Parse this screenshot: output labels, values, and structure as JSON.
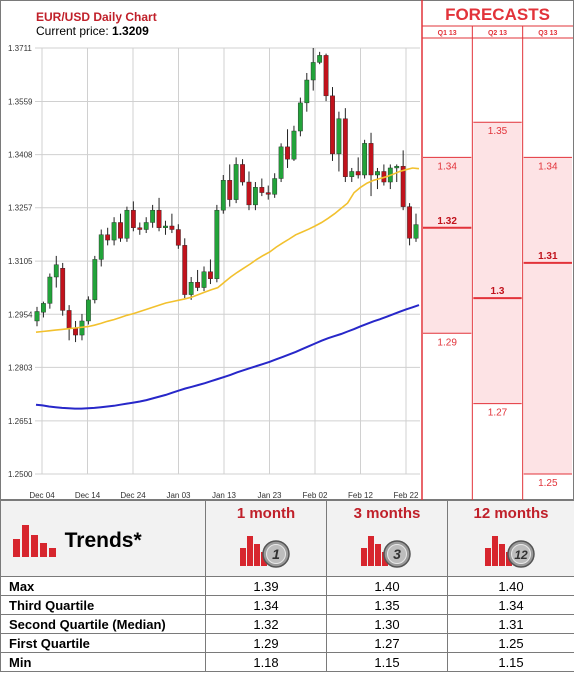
{
  "chart_data": [
    {
      "type": "candlestick",
      "title": "EUR/USD Daily Chart",
      "subtitle_label": "Current price:",
      "current_price": "1.3209",
      "y_ticks": [
        "1.3711",
        "1.3559",
        "1.3408",
        "1.3257",
        "1.3105",
        "1.2954",
        "1.2803",
        "1.2651",
        "1.2500"
      ],
      "ylim": [
        1.25,
        1.3711
      ],
      "x_ticks": [
        "Dec 04",
        "Dec 14",
        "Dec 24",
        "Jan 03",
        "Jan 13",
        "Jan 23",
        "Feb 02",
        "Feb 12",
        "Feb 22"
      ],
      "candles": [
        {
          "o": 1.2935,
          "h": 1.2975,
          "l": 1.292,
          "c": 1.2962
        },
        {
          "o": 1.296,
          "h": 1.299,
          "l": 1.2945,
          "c": 1.2985
        },
        {
          "o": 1.2985,
          "h": 1.307,
          "l": 1.297,
          "c": 1.306
        },
        {
          "o": 1.306,
          "h": 1.312,
          "l": 1.303,
          "c": 1.3095
        },
        {
          "o": 1.3085,
          "h": 1.31,
          "l": 1.295,
          "c": 1.2965
        },
        {
          "o": 1.2965,
          "h": 1.298,
          "l": 1.288,
          "c": 1.2915
        },
        {
          "o": 1.2915,
          "h": 1.2935,
          "l": 1.2875,
          "c": 1.2895
        },
        {
          "o": 1.2895,
          "h": 1.2955,
          "l": 1.288,
          "c": 1.2935
        },
        {
          "o": 1.2935,
          "h": 1.3005,
          "l": 1.2925,
          "c": 1.2995
        },
        {
          "o": 1.2995,
          "h": 1.312,
          "l": 1.2985,
          "c": 1.311
        },
        {
          "o": 1.311,
          "h": 1.3195,
          "l": 1.309,
          "c": 1.318
        },
        {
          "o": 1.318,
          "h": 1.32,
          "l": 1.315,
          "c": 1.3165
        },
        {
          "o": 1.3165,
          "h": 1.323,
          "l": 1.315,
          "c": 1.3215
        },
        {
          "o": 1.3215,
          "h": 1.324,
          "l": 1.316,
          "c": 1.317
        },
        {
          "o": 1.317,
          "h": 1.326,
          "l": 1.316,
          "c": 1.325
        },
        {
          "o": 1.325,
          "h": 1.3275,
          "l": 1.319,
          "c": 1.32
        },
        {
          "o": 1.32,
          "h": 1.3215,
          "l": 1.318,
          "c": 1.3195
        },
        {
          "o": 1.3195,
          "h": 1.323,
          "l": 1.3185,
          "c": 1.3215
        },
        {
          "o": 1.3215,
          "h": 1.3265,
          "l": 1.32,
          "c": 1.325
        },
        {
          "o": 1.325,
          "h": 1.3285,
          "l": 1.319,
          "c": 1.32
        },
        {
          "o": 1.32,
          "h": 1.322,
          "l": 1.318,
          "c": 1.3205
        },
        {
          "o": 1.3205,
          "h": 1.324,
          "l": 1.3185,
          "c": 1.3195
        },
        {
          "o": 1.3195,
          "h": 1.321,
          "l": 1.314,
          "c": 1.315
        },
        {
          "o": 1.315,
          "h": 1.317,
          "l": 1.3,
          "c": 1.301
        },
        {
          "o": 1.301,
          "h": 1.306,
          "l": 1.2995,
          "c": 1.3045
        },
        {
          "o": 1.3045,
          "h": 1.308,
          "l": 1.302,
          "c": 1.303
        },
        {
          "o": 1.303,
          "h": 1.309,
          "l": 1.302,
          "c": 1.3075
        },
        {
          "o": 1.3075,
          "h": 1.311,
          "l": 1.304,
          "c": 1.3055
        },
        {
          "o": 1.3055,
          "h": 1.3265,
          "l": 1.3045,
          "c": 1.325
        },
        {
          "o": 1.325,
          "h": 1.335,
          "l": 1.324,
          "c": 1.3335
        },
        {
          "o": 1.3335,
          "h": 1.338,
          "l": 1.326,
          "c": 1.328
        },
        {
          "o": 1.328,
          "h": 1.34,
          "l": 1.327,
          "c": 1.338
        },
        {
          "o": 1.338,
          "h": 1.3395,
          "l": 1.332,
          "c": 1.333
        },
        {
          "o": 1.333,
          "h": 1.336,
          "l": 1.325,
          "c": 1.3265
        },
        {
          "o": 1.3265,
          "h": 1.333,
          "l": 1.325,
          "c": 1.3315
        },
        {
          "o": 1.3315,
          "h": 1.334,
          "l": 1.329,
          "c": 1.33
        },
        {
          "o": 1.33,
          "h": 1.332,
          "l": 1.328,
          "c": 1.3295
        },
        {
          "o": 1.3295,
          "h": 1.3355,
          "l": 1.3285,
          "c": 1.334
        },
        {
          "o": 1.334,
          "h": 1.344,
          "l": 1.333,
          "c": 1.343
        },
        {
          "o": 1.343,
          "h": 1.348,
          "l": 1.337,
          "c": 1.3395
        },
        {
          "o": 1.3395,
          "h": 1.349,
          "l": 1.339,
          "c": 1.3475
        },
        {
          "o": 1.3475,
          "h": 1.357,
          "l": 1.346,
          "c": 1.3555
        },
        {
          "o": 1.3555,
          "h": 1.364,
          "l": 1.353,
          "c": 1.362
        },
        {
          "o": 1.362,
          "h": 1.3711,
          "l": 1.359,
          "c": 1.367
        },
        {
          "o": 1.367,
          "h": 1.37,
          "l": 1.3665,
          "c": 1.369
        },
        {
          "o": 1.369,
          "h": 1.3695,
          "l": 1.356,
          "c": 1.3575
        },
        {
          "o": 1.3575,
          "h": 1.36,
          "l": 1.339,
          "c": 1.341
        },
        {
          "o": 1.341,
          "h": 1.353,
          "l": 1.336,
          "c": 1.351
        },
        {
          "o": 1.351,
          "h": 1.354,
          "l": 1.333,
          "c": 1.3345
        },
        {
          "o": 1.3345,
          "h": 1.337,
          "l": 1.333,
          "c": 1.336
        },
        {
          "o": 1.336,
          "h": 1.34,
          "l": 1.334,
          "c": 1.335
        },
        {
          "o": 1.335,
          "h": 1.345,
          "l": 1.334,
          "c": 1.344
        },
        {
          "o": 1.344,
          "h": 1.347,
          "l": 1.329,
          "c": 1.335
        },
        {
          "o": 1.335,
          "h": 1.337,
          "l": 1.331,
          "c": 1.336
        },
        {
          "o": 1.336,
          "h": 1.338,
          "l": 1.332,
          "c": 1.333
        },
        {
          "o": 1.333,
          "h": 1.338,
          "l": 1.331,
          "c": 1.337
        },
        {
          "o": 1.337,
          "h": 1.338,
          "l": 1.333,
          "c": 1.3375
        },
        {
          "o": 1.3375,
          "h": 1.342,
          "l": 1.325,
          "c": 1.326
        },
        {
          "o": 1.326,
          "h": 1.327,
          "l": 1.315,
          "c": 1.317
        },
        {
          "o": 1.317,
          "h": 1.324,
          "l": 1.316,
          "c": 1.3209
        }
      ],
      "ma_short": [
        1.2903,
        1.2905,
        1.2907,
        1.2909,
        1.2911,
        1.2913,
        1.2915,
        1.2917,
        1.2919,
        1.2923,
        1.2928,
        1.2934,
        1.2939,
        1.2945,
        1.2951,
        1.2956,
        1.2962,
        1.2968,
        1.2974,
        1.298,
        1.2986,
        1.299,
        1.2994,
        1.2998,
        1.3003,
        1.301,
        1.3017,
        1.3024,
        1.303,
        1.3045,
        1.306,
        1.3073,
        1.3085,
        1.3097,
        1.311,
        1.3121,
        1.3131,
        1.3145,
        1.3157,
        1.3168,
        1.318,
        1.3188,
        1.3196,
        1.3205,
        1.3215,
        1.3227,
        1.324,
        1.3255,
        1.327,
        1.33,
        1.3315,
        1.3327,
        1.3335,
        1.334,
        1.3345,
        1.3352,
        1.336,
        1.3365,
        1.337,
        1.3368
      ],
      "ma_long": [
        1.2697,
        1.2695,
        1.2692,
        1.269,
        1.2688,
        1.2687,
        1.2686,
        1.2686,
        1.2687,
        1.2688,
        1.269,
        1.2692,
        1.2694,
        1.2697,
        1.27,
        1.2703,
        1.2706,
        1.271,
        1.2715,
        1.272,
        1.2725,
        1.2731,
        1.2737,
        1.2743,
        1.2748,
        1.2753,
        1.2758,
        1.2764,
        1.277,
        1.2776,
        1.2782,
        1.2789,
        1.2795,
        1.2801,
        1.2807,
        1.2813,
        1.2819,
        1.2826,
        1.2833,
        1.284,
        1.2847,
        1.2855,
        1.2863,
        1.2871,
        1.2879,
        1.2886,
        1.2892,
        1.2898,
        1.2905,
        1.2912,
        1.292,
        1.2927,
        1.2934,
        1.294,
        1.2947,
        1.2954,
        1.2961,
        1.2968,
        1.2974,
        1.298
      ],
      "colors": {
        "up": "#22a33a",
        "down": "#c1121c",
        "ma_short": "#f2c12e",
        "ma_long": "#2727c9",
        "grid": "#d0d0d0"
      }
    },
    {
      "type": "forecast",
      "title": "FORECASTS",
      "columns": [
        {
          "label": "Q1 13",
          "values": [
            {
              "v": 1.34,
              "t": "1.34"
            },
            {
              "v": 1.32,
              "t": "1.32",
              "bold": true
            },
            {
              "v": 1.29,
              "t": "1.29"
            }
          ]
        },
        {
          "label": "Q2 13",
          "values": [
            {
              "v": 1.35,
              "t": "1.35"
            },
            {
              "v": 1.3,
              "t": "1.3",
              "bold": true
            },
            {
              "v": 1.27,
              "t": "1.27"
            }
          ]
        },
        {
          "label": "Q3 13",
          "values": [
            {
              "v": 1.34,
              "t": "1.34"
            },
            {
              "v": 1.31,
              "t": "1.31",
              "bold": true
            },
            {
              "v": 1.25,
              "t": "1.25"
            }
          ]
        }
      ],
      "colors": {
        "accent": "#e2333a",
        "band": "#fde3e5"
      }
    }
  ],
  "trends": {
    "title": "Trends*",
    "columns": [
      {
        "label": "1 month",
        "badge": "1"
      },
      {
        "label": "3 months",
        "badge": "3"
      },
      {
        "label": "12 months",
        "badge": "12"
      }
    ],
    "rows": [
      {
        "label": "Max",
        "values": [
          "1.39",
          "1.40",
          "1.40"
        ]
      },
      {
        "label": "Third Quartile",
        "values": [
          "1.34",
          "1.35",
          "1.34"
        ]
      },
      {
        "label": "Second Quartile (Median)",
        "values": [
          "1.32",
          "1.30",
          "1.31"
        ]
      },
      {
        "label": "First Quartile",
        "values": [
          "1.29",
          "1.27",
          "1.25"
        ]
      },
      {
        "label": "Min",
        "values": [
          "1.18",
          "1.15",
          "1.15"
        ]
      }
    ]
  }
}
